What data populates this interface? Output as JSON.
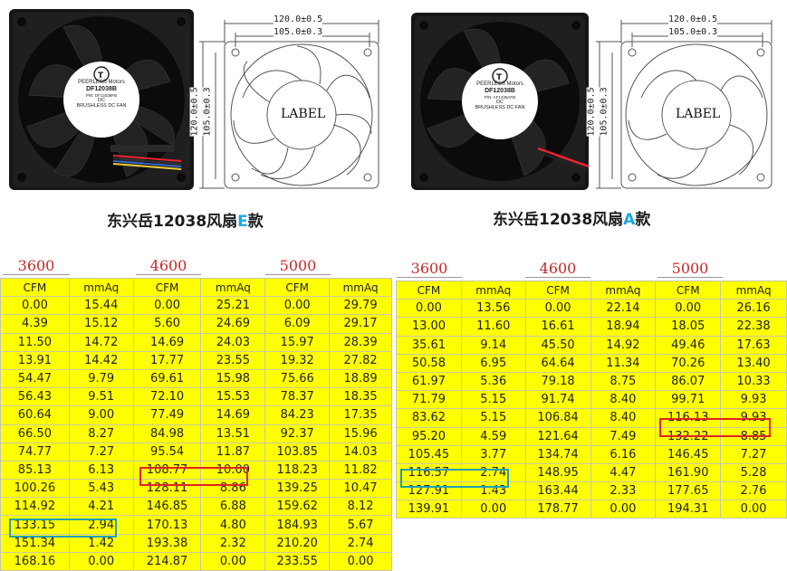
{
  "left_panel": {
    "fan_label": {
      "brand_top": "PEERLESS Motors",
      "model": "DF12038B",
      "sub": "P/N: DF12038FB",
      "l1": "DC",
      "l2": "BRUSHLESS DC FAN"
    },
    "drawing": {
      "dim_outer_w": "120.0±0.5",
      "dim_inner_w": "105.0±0.3",
      "dim_outer_h": "120.0±0.5",
      "dim_inner_h": "105.0±0.3",
      "center_label": "LABEL"
    },
    "caption_prefix": "东兴岳12038风扇",
    "caption_letter": "E",
    "caption_suffix": "款"
  },
  "right_panel": {
    "fan_label": {
      "brand_top": "PEERLESS Motors",
      "model": "DF12038B",
      "sub": "P/N: AF1438AFB",
      "l1": "DC",
      "l2": "BRUSHLESS DC FAN"
    },
    "drawing": {
      "dim_outer_w": "120.0±0.5",
      "dim_inner_w": "105.0±0.3",
      "dim_outer_h": "120.0±0.5",
      "dim_inner_h": "105.0±0.3",
      "center_label": "LABEL"
    },
    "caption_prefix": "东兴岳12038风扇",
    "caption_letter": "A",
    "caption_suffix": "款"
  },
  "table_e": {
    "rpm": [
      "3600",
      "4600",
      "5000"
    ],
    "headers": [
      "CFM",
      "mmAq",
      "CFM",
      "mmAq",
      "CFM",
      "mmAq"
    ],
    "rows": [
      [
        "0.00",
        "15.44",
        "0.00",
        "25.21",
        "0.00",
        "29.79"
      ],
      [
        "4.39",
        "15.12",
        "5.60",
        "24.69",
        "6.09",
        "29.17"
      ],
      [
        "11.50",
        "14.72",
        "14.69",
        "24.03",
        "15.97",
        "28.39"
      ],
      [
        "13.91",
        "14.42",
        "17.77",
        "23.55",
        "19.32",
        "27.82"
      ],
      [
        "54.47",
        "9.79",
        "69.61",
        "15.98",
        "75.66",
        "18.89"
      ],
      [
        "56.43",
        "9.51",
        "72.10",
        "15.53",
        "78.37",
        "18.35"
      ],
      [
        "60.64",
        "9.00",
        "77.49",
        "14.69",
        "84.23",
        "17.35"
      ],
      [
        "66.50",
        "8.27",
        "84.98",
        "13.51",
        "92.37",
        "15.96"
      ],
      [
        "74.77",
        "7.27",
        "95.54",
        "11.87",
        "103.85",
        "14.03"
      ],
      [
        "85.13",
        "6.13",
        "108.77",
        "10.00",
        "118.23",
        "11.82"
      ],
      [
        "100.26",
        "5.43",
        "128.11",
        "8.86",
        "139.25",
        "10.47"
      ],
      [
        "114.92",
        "4.21",
        "146.85",
        "6.88",
        "159.62",
        "8.12"
      ],
      [
        "133.15",
        "2.94",
        "170.13",
        "4.80",
        "184.93",
        "5.67"
      ],
      [
        "151.34",
        "1.42",
        "193.38",
        "2.32",
        "210.20",
        "2.74"
      ],
      [
        "168.16",
        "0.00",
        "214.87",
        "0.00",
        "233.55",
        "0.00"
      ]
    ]
  },
  "table_a": {
    "rpm": [
      "3600",
      "4600",
      "5000"
    ],
    "headers": [
      "CFM",
      "mmAq",
      "CFM",
      "mmAq",
      "CFM",
      "mmAq"
    ],
    "rows": [
      [
        "0.00",
        "13.56",
        "0.00",
        "22.14",
        "0.00",
        "26.16"
      ],
      [
        "13.00",
        "11.60",
        "16.61",
        "18.94",
        "18.05",
        "22.38"
      ],
      [
        "35.61",
        "9.14",
        "45.50",
        "14.92",
        "49.46",
        "17.63"
      ],
      [
        "50.58",
        "6.95",
        "64.64",
        "11.34",
        "70.26",
        "13.40"
      ],
      [
        "61.97",
        "5.36",
        "79.18",
        "8.75",
        "86.07",
        "10.33"
      ],
      [
        "71.79",
        "5.15",
        "91.74",
        "8.40",
        "99.71",
        "9.93"
      ],
      [
        "83.62",
        "5.15",
        "106.84",
        "8.40",
        "116.13",
        "9.93"
      ],
      [
        "95.20",
        "4.59",
        "121.64",
        "7.49",
        "132.22",
        "8.85"
      ],
      [
        "105.45",
        "3.77",
        "134.74",
        "6.16",
        "146.45",
        "7.27"
      ],
      [
        "116.57",
        "2.74",
        "148.95",
        "4.47",
        "161.90",
        "5.28"
      ],
      [
        "127.91",
        "1.43",
        "163.44",
        "2.33",
        "177.65",
        "2.76"
      ],
      [
        "139.91",
        "0.00",
        "178.77",
        "0.00",
        "194.31",
        "0.00"
      ]
    ]
  },
  "colors": {
    "table_fill": "#ffff00",
    "rpm_text": "#c62828",
    "highlight_red": "#e02424",
    "highlight_cyan": "#1f9fb8",
    "caption_accent": "#1aa6e6"
  }
}
